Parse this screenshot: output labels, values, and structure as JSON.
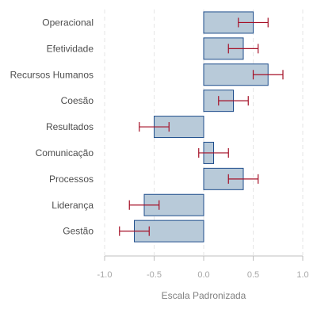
{
  "chart_data": {
    "type": "bar",
    "orientation": "horizontal",
    "error_bars": true,
    "categories": [
      "Operacional",
      "Efetividade",
      "Recursos Humanos",
      "Coesão",
      "Resultados",
      "Comunicação",
      "Processos",
      "Liderança",
      "Gestão"
    ],
    "values": [
      0.5,
      0.4,
      0.65,
      0.3,
      -0.5,
      0.1,
      0.4,
      -0.6,
      -0.7
    ],
    "error_low": [
      0.35,
      0.25,
      0.5,
      0.15,
      -0.65,
      -0.05,
      0.25,
      -0.75,
      -0.85
    ],
    "error_high": [
      0.65,
      0.55,
      0.8,
      0.45,
      -0.35,
      0.25,
      0.55,
      -0.45,
      -0.55
    ],
    "xlabel": "Escala Padronizada",
    "ylabel": "",
    "title": "",
    "xlim": [
      -1.0,
      1.0
    ],
    "xticks": [
      -1.0,
      -0.5,
      0.0,
      0.5,
      1.0
    ],
    "xtick_labels": [
      "-1.0",
      "-0.5",
      "0.0",
      "0.5",
      "1.0"
    ],
    "grid": "vertical dashed",
    "colors": {
      "bar_fill": "#b8cad9",
      "bar_stroke": "#1f4e8c",
      "error_bar": "#a50f26",
      "grid": "#e6e6e6",
      "axis": "#bfbfbf",
      "category_text": "#4d4d4d",
      "tick_text": "#a6a6a6",
      "axis_title_text": "#808080"
    }
  }
}
